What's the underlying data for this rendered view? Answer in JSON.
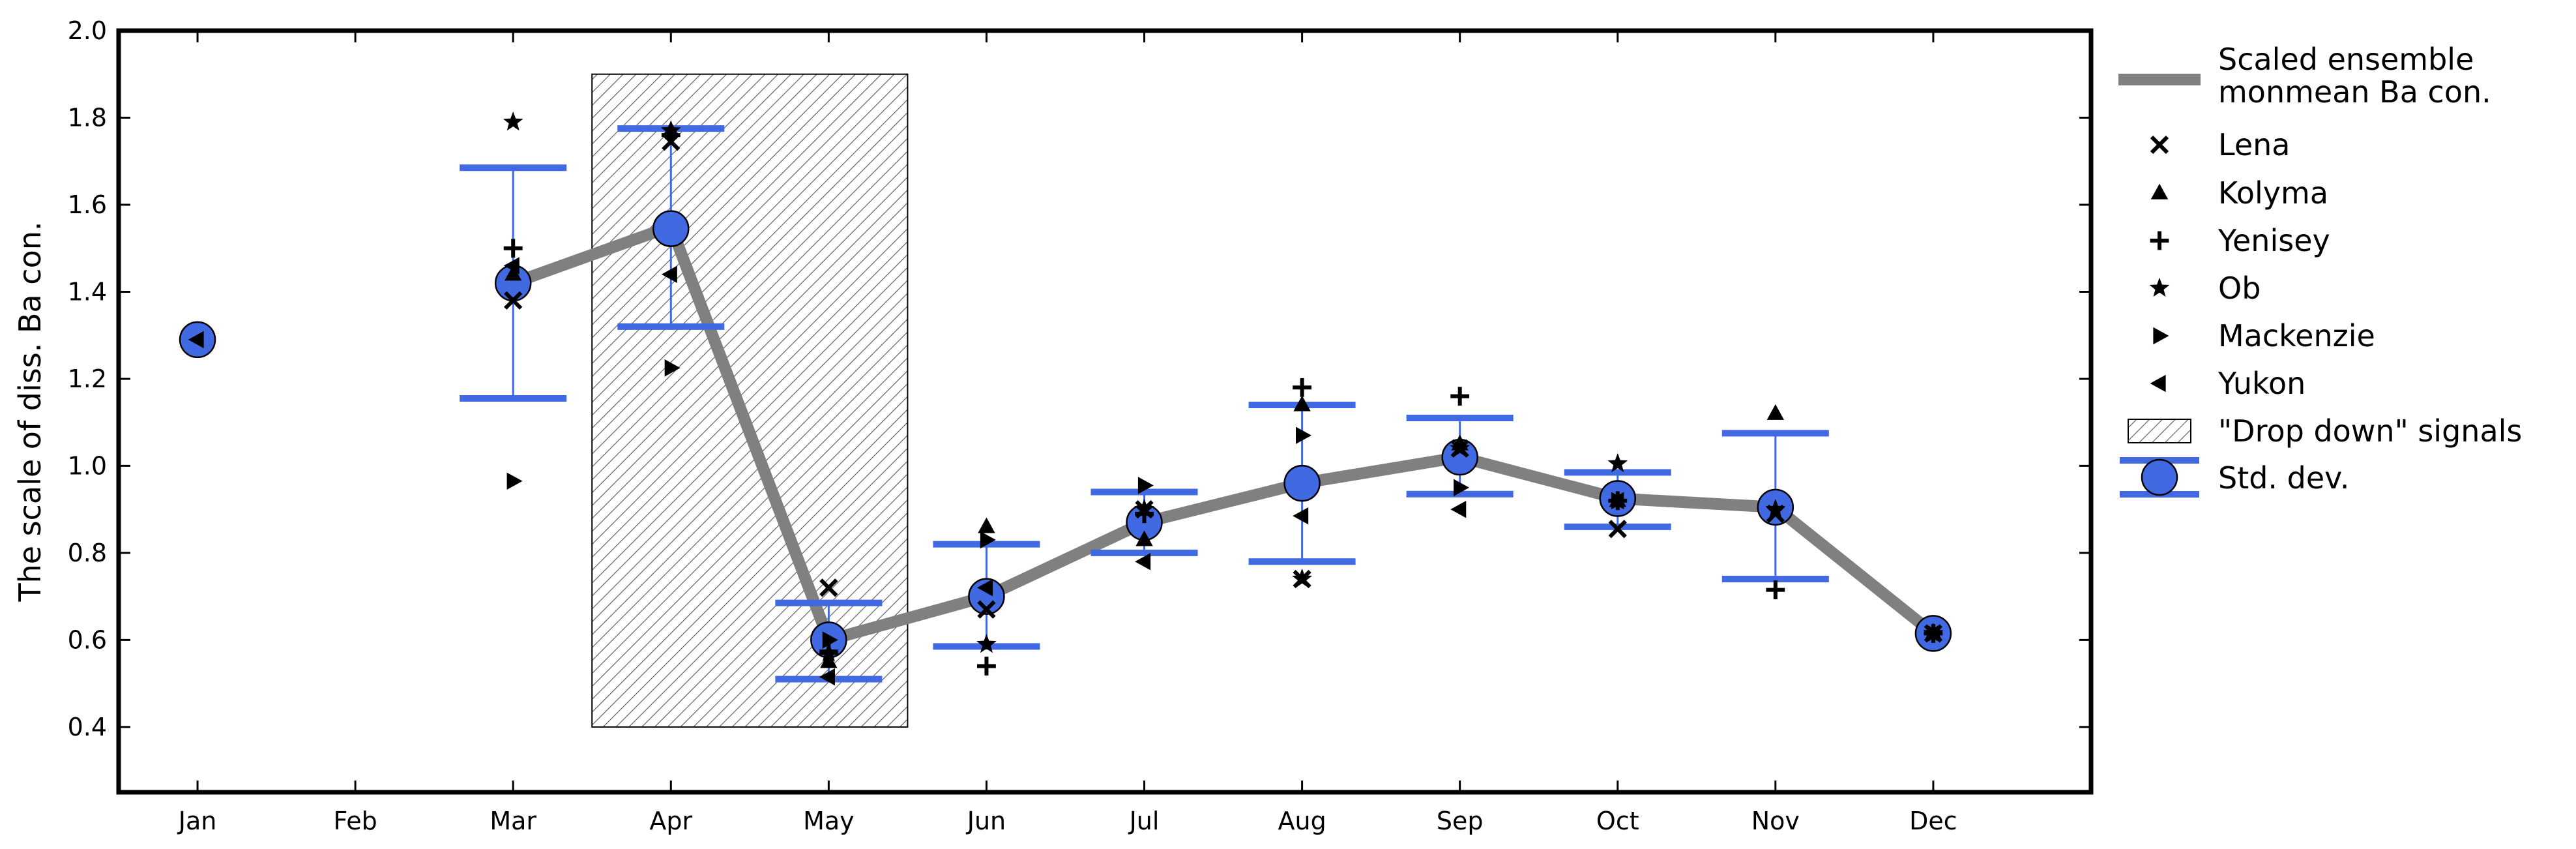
{
  "chart_data": {
    "type": "line",
    "title": "",
    "xlabel": "",
    "ylabel": "The scale of diss. Ba con.",
    "ylim": [
      0.25,
      2.0
    ],
    "yticks": [
      0.4,
      0.6,
      0.8,
      1.0,
      1.2,
      1.4,
      1.6,
      1.8,
      2.0
    ],
    "ytick_labels": [
      "0.4",
      "0.6",
      "0.8",
      "1.0",
      "1.2",
      "1.4",
      "1.6",
      "1.8",
      "2.0"
    ],
    "categories": [
      "Jan",
      "Feb",
      "Mar",
      "Apr",
      "May",
      "Jun",
      "Jul",
      "Aug",
      "Sep",
      "Oct",
      "Nov",
      "Dec"
    ],
    "grid": false,
    "legend_position": "outside-right",
    "shaded_region": {
      "label": "\"Drop down\" signals",
      "x_from": 3.5,
      "x_to": 5.5,
      "y_from": 0.4,
      "y_to": 1.9
    },
    "ensemble": {
      "name": "Scaled ensemble monmean Ba con.",
      "legend_lines": [
        "Scaled ensemble",
        "monmean Ba con."
      ],
      "months": [
        3,
        4,
        5,
        6,
        7,
        8,
        9,
        10,
        11,
        12
      ],
      "values": [
        1.42,
        1.55,
        0.6,
        0.7,
        0.87,
        0.96,
        1.02,
        0.925,
        0.905,
        0.615
      ]
    },
    "std_dev": {
      "name": "Std. dev.",
      "points": [
        {
          "month": 1,
          "mean": 1.29,
          "lower": null,
          "upper": null
        },
        {
          "month": 3,
          "mean": 1.42,
          "lower": 1.155,
          "upper": 1.685
        },
        {
          "month": 4,
          "mean": 1.545,
          "lower": 1.32,
          "upper": 1.775
        },
        {
          "month": 5,
          "mean": 0.6,
          "lower": 0.51,
          "upper": 0.685
        },
        {
          "month": 6,
          "mean": 0.7,
          "lower": 0.585,
          "upper": 0.82
        },
        {
          "month": 7,
          "mean": 0.87,
          "lower": 0.8,
          "upper": 0.94
        },
        {
          "month": 8,
          "mean": 0.96,
          "lower": 0.78,
          "upper": 1.14
        },
        {
          "month": 9,
          "mean": 1.02,
          "lower": 0.935,
          "upper": 1.11
        },
        {
          "month": 10,
          "mean": 0.925,
          "lower": 0.86,
          "upper": 0.985
        },
        {
          "month": 11,
          "mean": 0.905,
          "lower": 0.74,
          "upper": 1.075
        },
        {
          "month": 12,
          "mean": 0.615,
          "lower": null,
          "upper": null
        }
      ]
    },
    "rivers": [
      {
        "name": "Lena",
        "marker": "x",
        "points": [
          [
            3,
            1.38
          ],
          [
            4,
            1.745
          ],
          [
            5,
            0.72
          ],
          [
            6,
            0.67
          ],
          [
            7,
            0.9
          ],
          [
            8,
            0.74
          ],
          [
            9,
            1.04
          ],
          [
            10,
            0.855
          ],
          [
            11,
            0.89
          ],
          [
            12,
            0.615
          ]
        ]
      },
      {
        "name": "Kolyma",
        "marker": "triangle-up",
        "points": [
          [
            3,
            1.44
          ],
          [
            4,
            1.77
          ],
          [
            5,
            0.55
          ],
          [
            6,
            0.86
          ],
          [
            7,
            0.83
          ],
          [
            8,
            1.14
          ],
          [
            9,
            1.05
          ],
          [
            10,
            0.92
          ],
          [
            11,
            1.12
          ],
          [
            12,
            0.615
          ]
        ]
      },
      {
        "name": "Yenisey",
        "marker": "plus",
        "points": [
          [
            3,
            1.5
          ],
          [
            4,
            1.76
          ],
          [
            5,
            0.57
          ],
          [
            6,
            0.54
          ],
          [
            7,
            0.89
          ],
          [
            8,
            1.18
          ],
          [
            9,
            1.16
          ],
          [
            10,
            0.92
          ],
          [
            11,
            0.715
          ],
          [
            12,
            0.615
          ]
        ]
      },
      {
        "name": "Ob",
        "marker": "star",
        "points": [
          [
            3,
            1.79
          ],
          [
            4,
            1.77
          ],
          [
            5,
            0.57
          ],
          [
            6,
            0.59
          ],
          [
            7,
            0.9
          ],
          [
            8,
            0.74
          ],
          [
            9,
            1.04
          ],
          [
            10,
            1.005
          ],
          [
            11,
            0.9
          ],
          [
            12,
            0.615
          ]
        ]
      },
      {
        "name": "Mackenzie",
        "marker": "triangle-right",
        "points": [
          [
            3,
            0.965
          ],
          [
            4,
            1.225
          ],
          [
            5,
            0.6
          ],
          [
            6,
            0.83
          ],
          [
            7,
            0.955
          ],
          [
            8,
            1.07
          ],
          [
            9,
            0.95
          ],
          [
            10,
            0.92
          ],
          [
            12,
            0.615
          ]
        ]
      },
      {
        "name": "Yukon",
        "marker": "triangle-left",
        "points": [
          [
            1,
            1.29
          ],
          [
            3,
            1.46
          ],
          [
            4,
            1.44
          ],
          [
            5,
            0.515
          ],
          [
            6,
            0.72
          ],
          [
            7,
            0.78
          ],
          [
            8,
            0.885
          ],
          [
            9,
            0.9
          ],
          [
            10,
            0.92
          ],
          [
            12,
            0.615
          ]
        ]
      }
    ],
    "colors": {
      "ensemble_line": "#808080",
      "std_marker": "#4169e1",
      "river_marker": "#000000",
      "axes": "#000000"
    }
  }
}
